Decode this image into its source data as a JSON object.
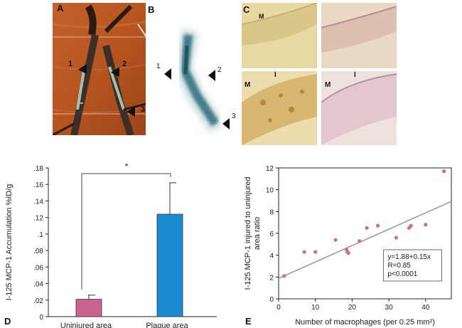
{
  "panels": {
    "a": {
      "letter": "A",
      "markers": [
        "1",
        "2",
        "3"
      ]
    },
    "b": {
      "letter": "B",
      "markers": [
        "1",
        "2",
        "3"
      ]
    },
    "c": {
      "letter": "C",
      "labels": [
        "M",
        "M",
        "I",
        "M",
        "I"
      ]
    },
    "d": {
      "letter": "D"
    },
    "e": {
      "letter": "E"
    }
  },
  "colors": {
    "bar_uninjured": "#c8648f",
    "bar_plaque": "#1c8bd4",
    "scatter_point": "#d46a8c",
    "fit_line": "#9a9a9a"
  },
  "chart_data": [
    {
      "type": "bar",
      "panel": "D",
      "title": "",
      "xlabel": "",
      "ylabel": "I-125 MCP-1 Accumulation %ID/g",
      "categories": [
        "Uninjured area",
        "Plaque area"
      ],
      "values": [
        0.021,
        0.124
      ],
      "error_upper": [
        0.026,
        0.162
      ],
      "ylim": [
        0,
        0.18
      ],
      "yticks": [
        0,
        0.02,
        0.04,
        0.06,
        0.08,
        0.1,
        0.12,
        0.14,
        0.16,
        0.18
      ],
      "ytick_labels": [
        "0",
        ".02",
        ".04",
        ".06",
        ".08",
        ".1",
        ".12",
        ".14",
        ".16",
        ".18"
      ],
      "significance": "*"
    },
    {
      "type": "scatter",
      "panel": "E",
      "title": "",
      "xlabel": "Number of macrophages (per 0.25 mm²)",
      "ylabel": "I-125 MCP-1 injured to uninjured area ratio",
      "xlim": [
        0,
        47
      ],
      "ylim": [
        0,
        12
      ],
      "xticks": [
        0,
        10,
        20,
        30,
        40
      ],
      "yticks": [
        0,
        2,
        4,
        6,
        8,
        10,
        12
      ],
      "points": [
        {
          "x": 1.5,
          "y": 2.1
        },
        {
          "x": 7,
          "y": 4.3
        },
        {
          "x": 10,
          "y": 4.3
        },
        {
          "x": 15.5,
          "y": 5.4
        },
        {
          "x": 18.5,
          "y": 4.5
        },
        {
          "x": 18.7,
          "y": 4.3
        },
        {
          "x": 19,
          "y": 4.2
        },
        {
          "x": 22,
          "y": 5.3
        },
        {
          "x": 24,
          "y": 6.5
        },
        {
          "x": 27,
          "y": 6.7
        },
        {
          "x": 32,
          "y": 5.6
        },
        {
          "x": 35.5,
          "y": 6.5
        },
        {
          "x": 36,
          "y": 6.7
        },
        {
          "x": 40,
          "y": 6.8
        },
        {
          "x": 45,
          "y": 11.7
        }
      ],
      "fit": {
        "intercept": 1.88,
        "slope": 0.15
      },
      "annotation": [
        "y=1.88+0.15x",
        "R=0.85",
        "p<0.0001"
      ]
    }
  ]
}
